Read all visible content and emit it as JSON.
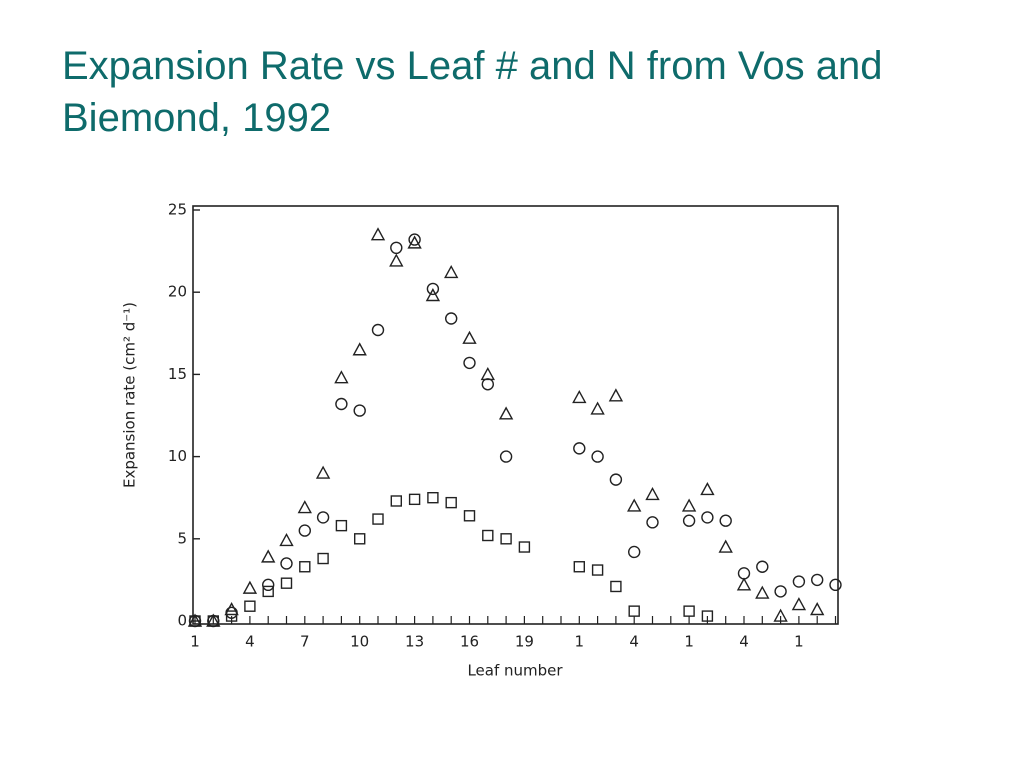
{
  "chart_data": {
    "type": "scatter",
    "title": "Expansion Rate vs Leaf # and N from Vos and Biemond, 1992",
    "xlabel": "Leaf number",
    "ylabel": "Expansion rate (cm² d⁻¹)",
    "categories": [
      "1",
      null,
      null,
      "4",
      null,
      null,
      "7",
      null,
      null,
      "10",
      null,
      null,
      "13",
      null,
      null,
      "16",
      null,
      null,
      "19",
      null,
      null,
      "1",
      null,
      null,
      "4",
      null,
      null,
      "1",
      null,
      null,
      "4",
      null,
      null,
      "1",
      null,
      null
    ],
    "ylim": [
      0,
      25
    ],
    "yticks": [
      0,
      5,
      10,
      15,
      20,
      25
    ],
    "series": [
      {
        "marker": "circle",
        "color": "#222222",
        "values": [
          0,
          0,
          0.5,
          null,
          2.2,
          3.5,
          5.5,
          6.3,
          13.2,
          12.8,
          17.7,
          22.7,
          23.2,
          20.2,
          18.4,
          15.7,
          14.4,
          10.0,
          null,
          null,
          null,
          10.5,
          10.0,
          8.6,
          4.2,
          6.0,
          null,
          6.1,
          6.3,
          6.1,
          2.9,
          3.3,
          1.8,
          2.4,
          2.5,
          2.2
        ]
      },
      {
        "marker": "triangle",
        "color": "#222222",
        "values": [
          0,
          0,
          0.7,
          2.0,
          3.9,
          4.9,
          6.9,
          9.0,
          14.8,
          16.5,
          23.5,
          21.9,
          23.0,
          19.8,
          21.2,
          17.2,
          15.0,
          12.6,
          null,
          null,
          null,
          13.6,
          12.9,
          13.7,
          7.0,
          7.7,
          null,
          7.0,
          8.0,
          4.5,
          2.2,
          1.7,
          0.3,
          1.0,
          0.7,
          null
        ]
      },
      {
        "marker": "square",
        "color": "#222222",
        "values": [
          0,
          0,
          0.3,
          0.9,
          1.8,
          2.3,
          3.3,
          3.8,
          5.8,
          5.0,
          6.2,
          7.3,
          7.4,
          7.5,
          7.2,
          6.4,
          5.2,
          5.0,
          4.5,
          null,
          null,
          3.3,
          3.1,
          2.1,
          0.6,
          null,
          null,
          0.6,
          0.3,
          null,
          null,
          null,
          null,
          null,
          null,
          null
        ]
      }
    ]
  }
}
